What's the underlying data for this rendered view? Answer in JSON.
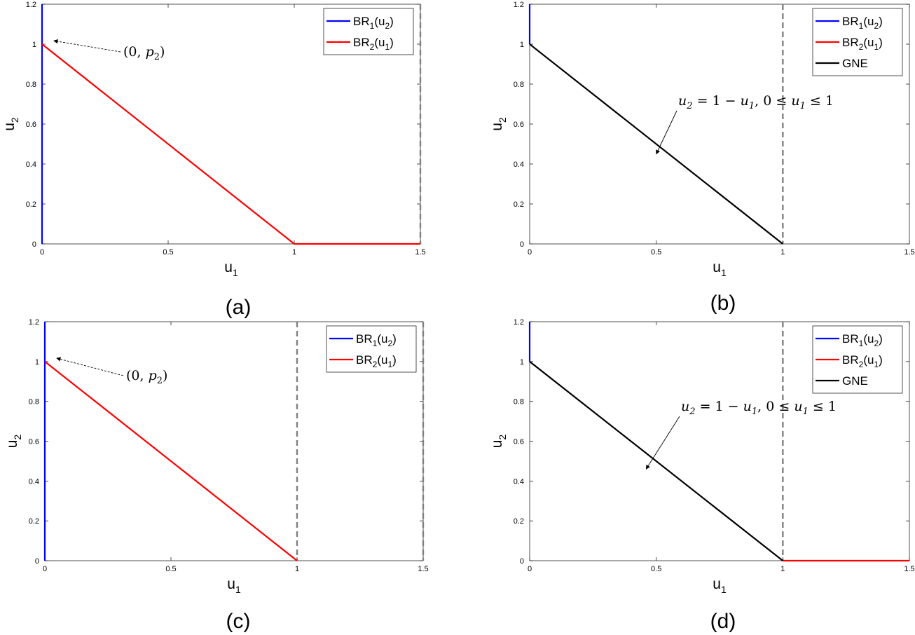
{
  "chart_data": [
    {
      "id": "a",
      "type": "line",
      "caption": "(a)",
      "xlabel": {
        "base": "u",
        "sub": "1"
      },
      "ylabel": {
        "base": "u",
        "sub": "2"
      },
      "xlim": [
        0,
        1.5
      ],
      "ylim": [
        0,
        1.2
      ],
      "xticks": [
        {
          "v": 0,
          "label": "0"
        },
        {
          "v": 0.5,
          "label": "0.5"
        },
        {
          "v": 1,
          "label": "1"
        },
        {
          "v": 1.5,
          "label": "1.5"
        }
      ],
      "yticks": [
        {
          "v": 0,
          "label": "0"
        },
        {
          "v": 0.2,
          "label": "0.2"
        },
        {
          "v": 0.4,
          "label": "0.4"
        },
        {
          "v": 0.6,
          "label": "0.6"
        },
        {
          "v": 0.8,
          "label": "0.8"
        },
        {
          "v": 1,
          "label": "1"
        },
        {
          "v": 1.2,
          "label": "1.2"
        }
      ],
      "legend_position": "top-right",
      "series": [
        {
          "name": "BR1(u2)",
          "legend": {
            "a": "BR",
            "b": "1",
            "c": "(u",
            "d": "2",
            "e": ")"
          },
          "color": "#0000ff",
          "segments": [
            [
              [
                0,
                0
              ],
              [
                0,
                1.2
              ]
            ]
          ]
        },
        {
          "name": "BR2(u1)",
          "legend": {
            "a": "BR",
            "b": "2",
            "c": "(u",
            "d": "1",
            "e": ")"
          },
          "color": "#ff0000",
          "segments": [
            [
              [
                0,
                1
              ],
              [
                1,
                0
              ],
              [
                1.5,
                0
              ]
            ]
          ]
        }
      ],
      "vlines": [
        {
          "x": 1.5,
          "color": "#808080",
          "style": "dashed"
        }
      ],
      "annotations": [
        {
          "kind": "point",
          "pre": "(0, ",
          "var": "p",
          "sub": "2",
          "post": ")",
          "target": [
            0.03,
            1.01
          ]
        }
      ]
    },
    {
      "id": "b",
      "type": "line",
      "caption": "(b)",
      "xlabel": {
        "base": "u",
        "sub": "1"
      },
      "ylabel": {
        "base": "u",
        "sub": "2"
      },
      "xlim": [
        0,
        1.5
      ],
      "ylim": [
        0,
        1.2
      ],
      "xticks": [
        {
          "v": 0,
          "label": "0"
        },
        {
          "v": 0.5,
          "label": "0.5"
        },
        {
          "v": 1,
          "label": "1"
        },
        {
          "v": 1.5,
          "label": "1.5"
        }
      ],
      "yticks": [
        {
          "v": 0,
          "label": "0"
        },
        {
          "v": 0.2,
          "label": "0.2"
        },
        {
          "v": 0.4,
          "label": "0.4"
        },
        {
          "v": 0.6,
          "label": "0.6"
        },
        {
          "v": 0.8,
          "label": "0.8"
        },
        {
          "v": 1,
          "label": "1"
        },
        {
          "v": 1.2,
          "label": "1.2"
        }
      ],
      "legend_position": "top-right",
      "series": [
        {
          "name": "BR1(u2)",
          "legend": {
            "a": "BR",
            "b": "1",
            "c": "(u",
            "d": "2",
            "e": ")"
          },
          "color": "#0000ff",
          "segments": [
            [
              [
                0,
                1
              ],
              [
                0,
                1.2
              ]
            ]
          ]
        },
        {
          "name": "BR2(u1)",
          "legend": {
            "a": "BR",
            "b": "2",
            "c": "(u",
            "d": "1",
            "e": ")"
          },
          "color": "#ff0000",
          "segments": []
        },
        {
          "name": "GNE",
          "legend": {
            "a": "GNE",
            "b": "",
            "c": "",
            "d": "",
            "e": ""
          },
          "color": "#000000",
          "segments": [
            [
              [
                0,
                1
              ],
              [
                1,
                0
              ]
            ]
          ]
        }
      ],
      "vlines": [
        {
          "x": 1,
          "color": "#808080",
          "style": "dashed"
        }
      ],
      "annotations": [
        {
          "kind": "equation",
          "target": [
            0.5,
            0.45
          ],
          "from": [
            0.58,
            0.58
          ]
        }
      ]
    },
    {
      "id": "c",
      "type": "line",
      "caption": "(c)",
      "xlabel": {
        "base": "u",
        "sub": "1"
      },
      "ylabel": {
        "base": "u",
        "sub": "2"
      },
      "xlim": [
        0,
        1.5
      ],
      "ylim": [
        0,
        1.2
      ],
      "xticks": [
        {
          "v": 0,
          "label": "0"
        },
        {
          "v": 0.5,
          "label": "0.5"
        },
        {
          "v": 1,
          "label": "1"
        },
        {
          "v": 1.5,
          "label": "1.5"
        }
      ],
      "yticks": [
        {
          "v": 0,
          "label": "0"
        },
        {
          "v": 0.2,
          "label": "0.2"
        },
        {
          "v": 0.4,
          "label": "0.4"
        },
        {
          "v": 0.6,
          "label": "0.6"
        },
        {
          "v": 0.8,
          "label": "0.8"
        },
        {
          "v": 1,
          "label": "1"
        },
        {
          "v": 1.2,
          "label": "1.2"
        }
      ],
      "legend_position": "top-right",
      "series": [
        {
          "name": "BR1(u2)",
          "legend": {
            "a": "BR",
            "b": "1",
            "c": "(u",
            "d": "2",
            "e": ")"
          },
          "color": "#0000ff",
          "segments": [
            [
              [
                0,
                0
              ],
              [
                0,
                1.2
              ]
            ]
          ]
        },
        {
          "name": "BR2(u1)",
          "legend": {
            "a": "BR",
            "b": "2",
            "c": "(u",
            "d": "1",
            "e": ")"
          },
          "color": "#ff0000",
          "segments": [
            [
              [
                0,
                1
              ],
              [
                1,
                0
              ]
            ]
          ]
        }
      ],
      "vlines": [
        {
          "x": 1,
          "color": "#808080",
          "style": "dashed"
        },
        {
          "x": 1.5,
          "color": "#808080",
          "style": "dashed"
        }
      ],
      "annotations": [
        {
          "kind": "point",
          "pre": "(0, ",
          "var": "p",
          "sub": "2",
          "post": ")",
          "target": [
            0.03,
            1.01
          ]
        }
      ]
    },
    {
      "id": "d",
      "type": "line",
      "caption": "(d)",
      "xlabel": {
        "base": "u",
        "sub": "1"
      },
      "ylabel": {
        "base": "u",
        "sub": "2"
      },
      "xlim": [
        0,
        1.5
      ],
      "ylim": [
        0,
        1.2
      ],
      "xticks": [
        {
          "v": 0,
          "label": "0"
        },
        {
          "v": 0.5,
          "label": "0.5"
        },
        {
          "v": 1,
          "label": "1"
        },
        {
          "v": 1.5,
          "label": "1.5"
        }
      ],
      "yticks": [
        {
          "v": 0,
          "label": "0"
        },
        {
          "v": 0.2,
          "label": "0.2"
        },
        {
          "v": 0.4,
          "label": "0.4"
        },
        {
          "v": 0.6,
          "label": "0.6"
        },
        {
          "v": 0.8,
          "label": "0.8"
        },
        {
          "v": 1,
          "label": "1"
        },
        {
          "v": 1.2,
          "label": "1.2"
        }
      ],
      "legend_position": "top-right",
      "series": [
        {
          "name": "BR1(u2)",
          "legend": {
            "a": "BR",
            "b": "1",
            "c": "(u",
            "d": "2",
            "e": ")"
          },
          "color": "#0000ff",
          "segments": [
            [
              [
                0,
                1
              ],
              [
                0,
                1.2
              ]
            ]
          ]
        },
        {
          "name": "BR2(u1)",
          "legend": {
            "a": "BR",
            "b": "2",
            "c": "(u",
            "d": "1",
            "e": ")"
          },
          "color": "#ff0000",
          "segments": [
            [
              [
                1,
                0
              ],
              [
                1.5,
                0
              ]
            ]
          ]
        },
        {
          "name": "GNE",
          "legend": {
            "a": "GNE",
            "b": "",
            "c": "",
            "d": "",
            "e": ""
          },
          "color": "#000000",
          "segments": [
            [
              [
                0,
                1
              ],
              [
                1,
                0
              ]
            ]
          ]
        }
      ],
      "vlines": [
        {
          "x": 1,
          "color": "#808080",
          "style": "dashed"
        }
      ],
      "annotations": [
        {
          "kind": "equation",
          "target": [
            0.46,
            0.46
          ],
          "from": [
            0.56,
            0.59
          ]
        }
      ]
    }
  ],
  "equation": {
    "lhs_var": "u",
    "lhs_sub": "2",
    "mid": " = 1 − ",
    "rhs_var": "u",
    "rhs_sub": "1",
    "comma": ", 0 ≤ ",
    "cond_var": "u",
    "cond_sub": "1",
    "tail": " ≤ 1"
  }
}
